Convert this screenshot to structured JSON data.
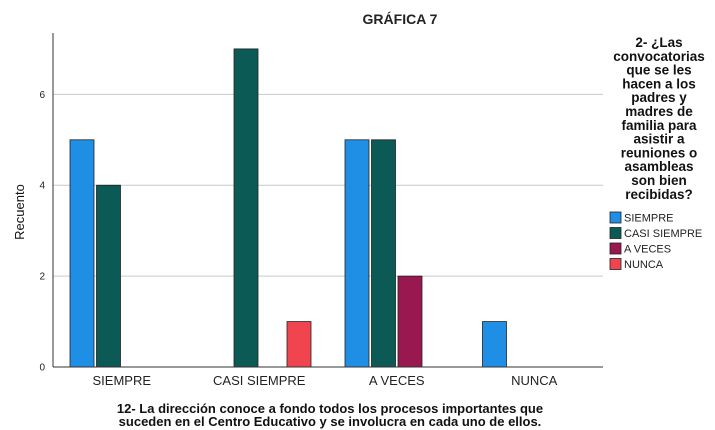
{
  "chart_data": {
    "type": "bar",
    "title": "GRÁFICA 7",
    "ylabel": "Recuento",
    "xlabel_lines": [
      "12- La dirección conoce a fondo todos los procesos importantes que",
      "suceden en el Centro Educativo y se involucra en cada uno de ellos."
    ],
    "categories": [
      "SIEMPRE",
      "CASI SIEMPRE",
      "A VECES",
      "NUNCA"
    ],
    "ylim": [
      0,
      7.35
    ],
    "yticks": [
      0,
      2,
      4,
      6
    ],
    "grid": true,
    "legend_placement": "right",
    "legend_title_lines": [
      "2- ¿Las",
      "convocatorias",
      "que se les",
      "hacen a los",
      "padres y",
      "madres de",
      "familia para",
      "asistir a",
      "reuniones o",
      "asambleas",
      "son bien",
      "recibidas?"
    ],
    "series": [
      {
        "name": "SIEMPRE",
        "color": "#1f8fe5",
        "values": [
          5,
          0,
          5,
          1
        ]
      },
      {
        "name": "CASI SIEMPRE",
        "color": "#0b5a55",
        "values": [
          4,
          7,
          5,
          0
        ]
      },
      {
        "name": "A VECES",
        "color": "#9a1850",
        "values": [
          0,
          0,
          2,
          0
        ]
      },
      {
        "name": "NUNCA",
        "color": "#f0454f",
        "values": [
          0,
          1,
          0,
          0
        ]
      }
    ]
  }
}
